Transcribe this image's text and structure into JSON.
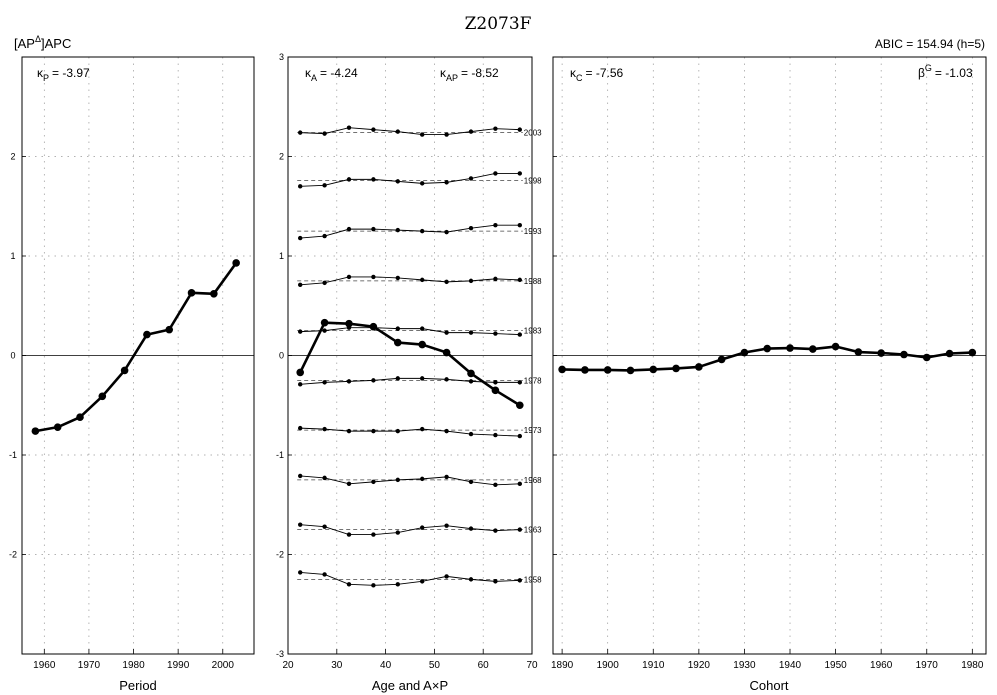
{
  "figure": {
    "title": "Z2073F",
    "model_label_prefix": "[AP",
    "model_label_sup": "Δ",
    "model_label_suffix": "]APC",
    "abic_label": "ABIC = 154.94 (h=5)"
  },
  "chart_data": [
    {
      "type": "line",
      "panel": "period",
      "xlabel": "Period",
      "ylabel": "",
      "xlim": [
        1955,
        2007
      ],
      "ylim": [
        -3,
        3
      ],
      "xticks": [
        1960,
        1970,
        1980,
        1990,
        2000
      ],
      "yticks": [
        -2,
        -1,
        0,
        1,
        2
      ],
      "grid": true,
      "annotations": {
        "kappa_label": "κ",
        "kappa_sub": "P",
        "kappa_value": "= -3.97"
      },
      "series": [
        {
          "x": [
            1958,
            1963,
            1968,
            1973,
            1978,
            1983,
            1988,
            1993,
            1998,
            2003
          ],
          "values": [
            -0.76,
            -0.72,
            -0.62,
            -0.41,
            -0.15,
            0.21,
            0.26,
            0.63,
            0.62,
            0.93
          ]
        }
      ]
    },
    {
      "type": "line",
      "panel": "age",
      "xlabel": "Age and A×P",
      "ylabel": "",
      "xlim": [
        20,
        70
      ],
      "ylim": [
        -3,
        3
      ],
      "xticks": [
        20,
        30,
        40,
        50,
        60,
        70
      ],
      "yticks": [
        -3,
        -2,
        -1,
        0,
        1,
        2,
        3
      ],
      "grid": true,
      "annotations": {
        "kappa_a_label": "κ",
        "kappa_a_sub": "A",
        "kappa_a_value": "= -4.24",
        "kappa_ap_label": "κ",
        "kappa_ap_sub": "AP",
        "kappa_ap_value": "= -8.52"
      },
      "series": [
        {
          "x": [
            22.5,
            27.5,
            32.5,
            37.5,
            42.5,
            47.5,
            52.5,
            57.5,
            62.5,
            67.5
          ],
          "values": [
            -0.17,
            0.33,
            0.32,
            0.29,
            0.13,
            0.11,
            0.03,
            -0.18,
            -0.35,
            -0.5
          ]
        }
      ],
      "interaction": {
        "x": [
          22.5,
          27.5,
          32.5,
          37.5,
          42.5,
          47.5,
          52.5,
          57.5,
          62.5,
          67.5
        ],
        "rows": [
          {
            "label": "2003",
            "baseline": 2.24,
            "values": [
              2.24,
              2.23,
              2.29,
              2.27,
              2.25,
              2.22,
              2.22,
              2.25,
              2.28,
              2.27
            ]
          },
          {
            "label": "1998",
            "baseline": 1.76,
            "values": [
              1.7,
              1.71,
              1.77,
              1.77,
              1.75,
              1.73,
              1.74,
              1.78,
              1.83,
              1.83
            ]
          },
          {
            "label": "1993",
            "baseline": 1.25,
            "values": [
              1.18,
              1.2,
              1.27,
              1.27,
              1.26,
              1.25,
              1.24,
              1.28,
              1.31,
              1.31
            ]
          },
          {
            "label": "1988",
            "baseline": 0.75,
            "values": [
              0.71,
              0.73,
              0.79,
              0.79,
              0.78,
              0.76,
              0.74,
              0.75,
              0.77,
              0.76
            ]
          },
          {
            "label": "1983",
            "baseline": 0.25,
            "values": [
              0.24,
              0.25,
              0.28,
              0.28,
              0.27,
              0.27,
              0.23,
              0.23,
              0.22,
              0.21
            ]
          },
          {
            "label": "1978",
            "baseline": -0.25,
            "values": [
              -0.29,
              -0.27,
              -0.26,
              -0.25,
              -0.23,
              -0.23,
              -0.24,
              -0.26,
              -0.27,
              -0.27
            ]
          },
          {
            "label": "1973",
            "baseline": -0.75,
            "values": [
              -0.73,
              -0.74,
              -0.76,
              -0.76,
              -0.76,
              -0.74,
              -0.76,
              -0.79,
              -0.8,
              -0.81
            ]
          },
          {
            "label": "1968",
            "baseline": -1.25,
            "values": [
              -1.21,
              -1.23,
              -1.29,
              -1.27,
              -1.25,
              -1.24,
              -1.22,
              -1.27,
              -1.3,
              -1.29
            ]
          },
          {
            "label": "1963",
            "baseline": -1.75,
            "values": [
              -1.7,
              -1.72,
              -1.8,
              -1.8,
              -1.78,
              -1.73,
              -1.71,
              -1.74,
              -1.76,
              -1.75
            ]
          },
          {
            "label": "1958",
            "baseline": -2.25,
            "values": [
              -2.18,
              -2.2,
              -2.3,
              -2.31,
              -2.3,
              -2.27,
              -2.22,
              -2.25,
              -2.27,
              -2.26
            ]
          }
        ]
      }
    },
    {
      "type": "line",
      "panel": "cohort",
      "xlabel": "Cohort",
      "ylabel": "",
      "xlim": [
        1888,
        1983
      ],
      "ylim": [
        -3,
        3
      ],
      "xticks": [
        1890,
        1900,
        1910,
        1920,
        1930,
        1940,
        1950,
        1960,
        1970,
        1980
      ],
      "yticks": [
        -2,
        -1,
        0,
        1,
        2
      ],
      "grid": true,
      "annotations": {
        "kappa_label": "κ",
        "kappa_sub": "C",
        "kappa_value": "= -7.56",
        "beta_label": "β",
        "beta_sup": "G",
        "beta_value": "= -1.03"
      },
      "series": [
        {
          "x": [
            1890,
            1895,
            1900,
            1905,
            1910,
            1915,
            1920,
            1925,
            1930,
            1935,
            1940,
            1945,
            1950,
            1955,
            1960,
            1965,
            1970,
            1975,
            1980
          ],
          "values": [
            -0.14,
            -0.145,
            -0.145,
            -0.15,
            -0.14,
            -0.13,
            -0.115,
            -0.04,
            0.03,
            0.07,
            0.075,
            0.065,
            0.09,
            0.035,
            0.025,
            0.01,
            -0.02,
            0.02,
            0.03
          ]
        }
      ]
    }
  ]
}
